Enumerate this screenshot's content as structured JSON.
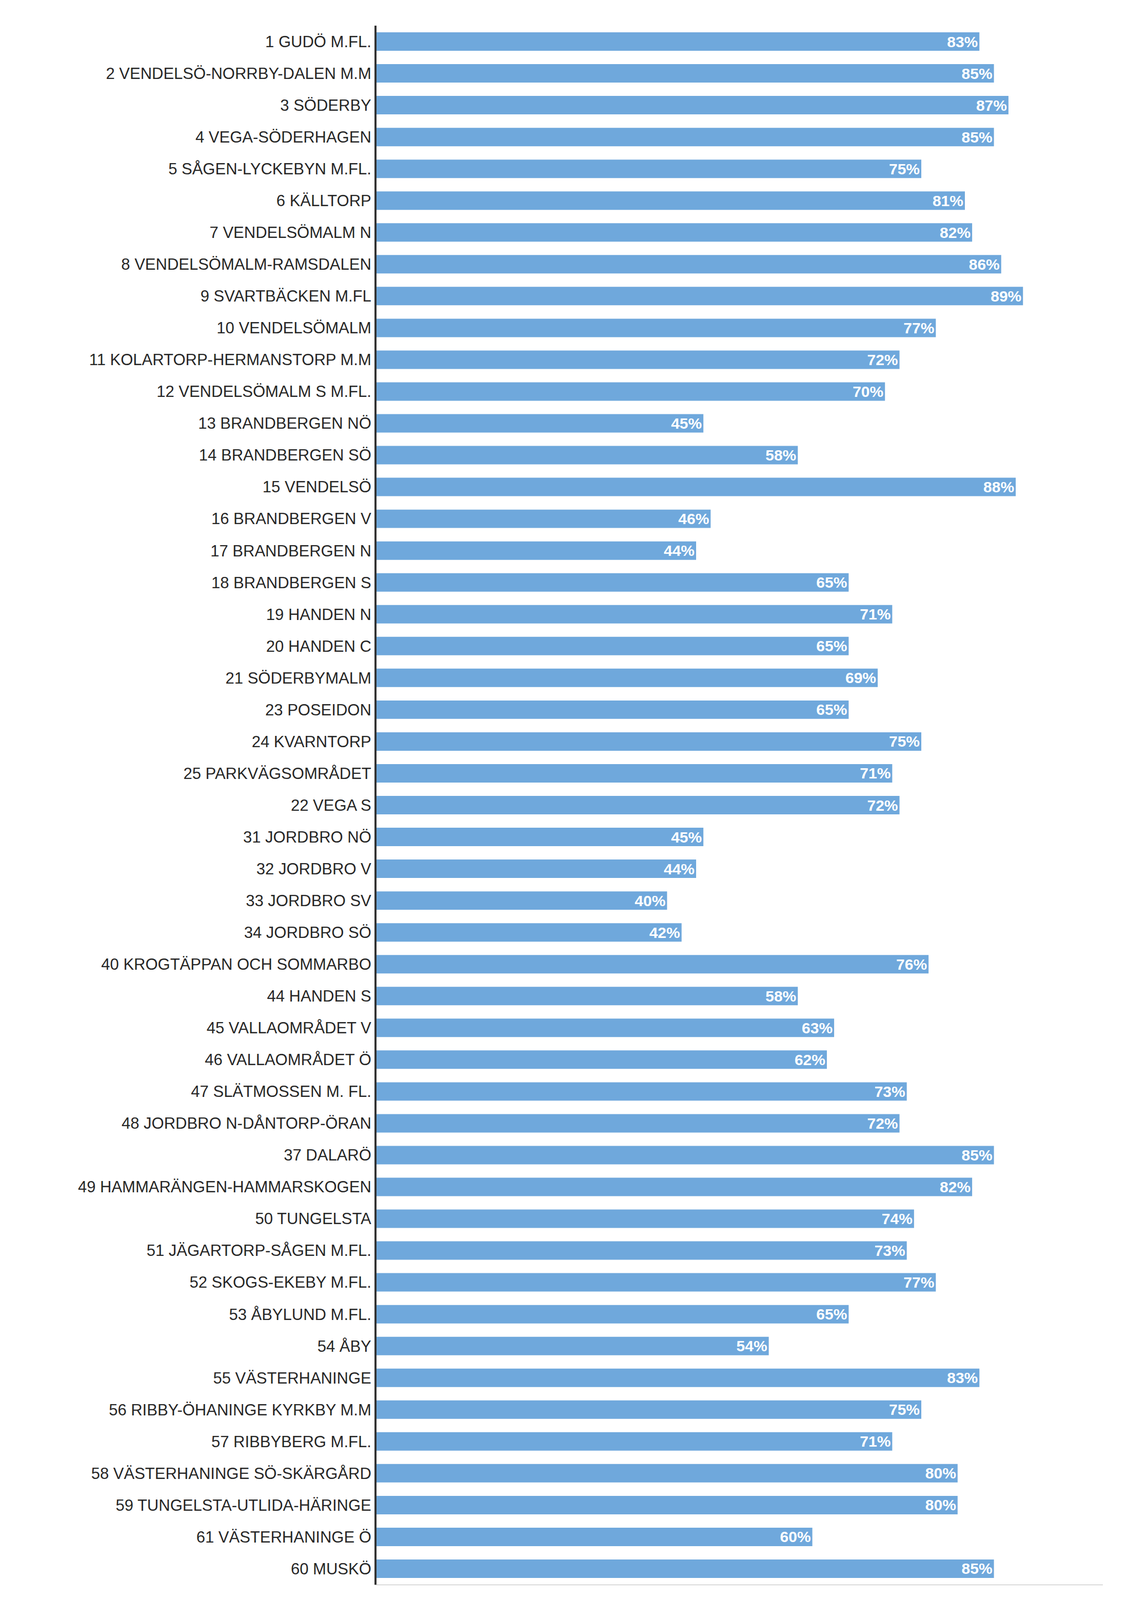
{
  "chart_data": {
    "type": "bar",
    "orientation": "horizontal",
    "categories": [
      "1 GUDÖ M.FL.",
      "2 VENDELSÖ-NORRBY-DALEN M.M",
      "3 SÖDERBY",
      "4 VEGA-SÖDERHAGEN",
      "5 SÅGEN-LYCKEBYN M.FL.",
      "6 KÄLLTORP",
      "7 VENDELSÖMALM N",
      "8 VENDELSÖMALM-RAMSDALEN",
      "9 SVARTBÄCKEN M.FL",
      "10 VENDELSÖMALM",
      "11 KOLARTORP-HERMANSTORP M.M",
      "12 VENDELSÖMALM S M.FL.",
      "13 BRANDBERGEN NÖ",
      "14 BRANDBERGEN SÖ",
      "15 VENDELSÖ",
      "16 BRANDBERGEN V",
      "17 BRANDBERGEN N",
      "18 BRANDBERGEN S",
      "19 HANDEN N",
      "20 HANDEN C",
      "21 SÖDERBYMALM",
      "23 POSEIDON",
      "24 KVARNTORP",
      "25 PARKVÄGSOMRÅDET",
      "22 VEGA S",
      "31 JORDBRO NÖ",
      "32 JORDBRO V",
      "33 JORDBRO SV",
      "34 JORDBRO SÖ",
      "40 KROGTÄPPAN OCH SOMMARBO",
      "44 HANDEN S",
      "45 VALLAOMRÅDET V",
      "46 VALLAOMRÅDET Ö",
      "47 SLÄTMOSSEN M. FL.",
      "48 JORDBRO N-DÅNTORP-ÖRAN",
      "37 DALARÖ",
      "49 HAMMARÄNGEN-HAMMARSKOGEN",
      "50 TUNGELSTA",
      "51 JÄGARTORP-SÅGEN M.FL.",
      "52 SKOGS-EKEBY M.FL.",
      "53 ÅBYLUND M.FL.",
      "54 ÅBY",
      "55 VÄSTERHANINGE",
      "56 RIBBY-ÖHANINGE KYRKBY M.M",
      "57 RIBBYBERG M.FL.",
      "58 VÄSTERHANINGE SÖ-SKÄRGÅRD",
      "59 TUNGELSTA-UTLIDA-HÄRINGE",
      "61 VÄSTERHANINGE Ö",
      "60 MUSKÖ"
    ],
    "values": [
      83,
      85,
      87,
      85,
      75,
      81,
      82,
      86,
      89,
      77,
      72,
      70,
      45,
      58,
      88,
      46,
      44,
      65,
      71,
      65,
      69,
      65,
      75,
      71,
      72,
      45,
      44,
      40,
      42,
      76,
      58,
      63,
      62,
      73,
      72,
      85,
      82,
      74,
      73,
      77,
      65,
      54,
      83,
      75,
      71,
      80,
      80,
      60,
      85
    ],
    "value_labels": [
      "83%",
      "85%",
      "87%",
      "85%",
      "75%",
      "81%",
      "82%",
      "86%",
      "89%",
      "77%",
      "72%",
      "70%",
      "45%",
      "58%",
      "88%",
      "46%",
      "44%",
      "65%",
      "71%",
      "65%",
      "69%",
      "65%",
      "75%",
      "71%",
      "72%",
      "45%",
      "44%",
      "40%",
      "42%",
      "76%",
      "58%",
      "63%",
      "62%",
      "73%",
      "72%",
      "85%",
      "82%",
      "74%",
      "73%",
      "77%",
      "65%",
      "54%",
      "83%",
      "75%",
      "71%",
      "80%",
      "80%",
      "60%",
      "85%"
    ],
    "color": "#6fa8dc",
    "xlim": [
      0,
      100
    ],
    "data_labels": true,
    "tick_labels": "y",
    "grid": false
  }
}
